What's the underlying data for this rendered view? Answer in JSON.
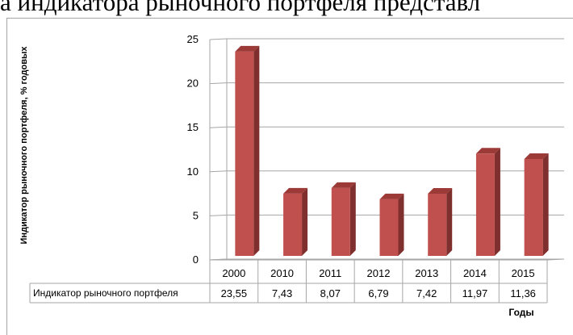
{
  "header_text": "а индикатора рыночного портфеля представл",
  "chart_data": {
    "type": "bar",
    "categories": [
      "2000",
      "2010",
      "2011",
      "2012",
      "2013",
      "2014",
      "2015"
    ],
    "values": [
      23.55,
      7.43,
      8.07,
      6.79,
      7.42,
      11.97,
      11.36
    ],
    "value_labels": [
      "23,55",
      "7,43",
      "8,07",
      "6,79",
      "7,42",
      "11,97",
      "11,36"
    ],
    "series": [
      {
        "name": "Индикатор рыночного портфеля",
        "values": [
          23.55,
          7.43,
          8.07,
          6.79,
          7.42,
          11.97,
          11.36
        ]
      }
    ],
    "ylabel": "Индикатор рыночного портфеля, % годовых",
    "xlabel": "Годы",
    "ylim": [
      0,
      25
    ],
    "yticks": [
      0,
      5,
      10,
      15,
      20,
      25
    ],
    "grid": true,
    "style": "3d-columns",
    "data_table": true
  },
  "colors": {
    "bar_front": "#c0504d",
    "bar_side": "#7f2f2d",
    "bar_top": "#9b3a37",
    "grid": "#a6a6a6",
    "text": "#000000"
  }
}
